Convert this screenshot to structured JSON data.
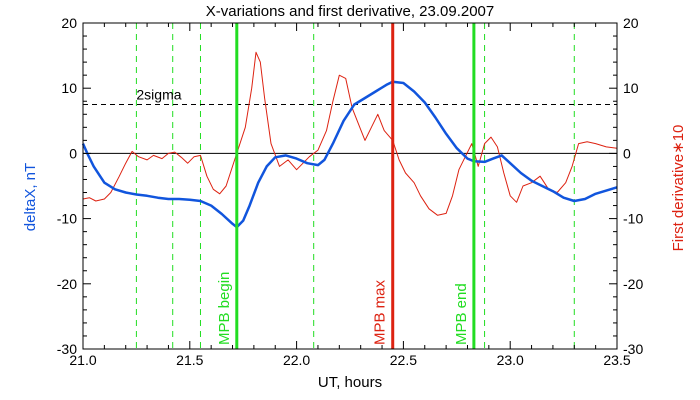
{
  "chart_data": {
    "type": "line",
    "title": "X-variations and first derivative, 23.09.2007",
    "xlabel": "UT, hours",
    "ylabel_left": "deltaX, nT",
    "ylabel_right": "First derivative∗10",
    "xlim": [
      21.0,
      23.5
    ],
    "ylim": [
      -30,
      20
    ],
    "x_ticks": [
      "21.0",
      "21.5",
      "22.0",
      "22.5",
      "23.0",
      "23.5"
    ],
    "y_ticks": [
      "-30",
      "-20",
      "-10",
      "0",
      "10",
      "20"
    ],
    "threshold": {
      "label": "2sigma",
      "value": 7.5
    },
    "zero_line": 0,
    "dashed_verticals": [
      21.25,
      21.42,
      21.55,
      22.08,
      22.88,
      23.3
    ],
    "markers": [
      {
        "label": "MPB begin",
        "x": 21.72,
        "color": "#22dd22"
      },
      {
        "label": "MPB max",
        "x": 22.45,
        "color": "#dd2211"
      },
      {
        "label": "MPB end",
        "x": 22.83,
        "color": "#22dd22"
      }
    ],
    "series": [
      {
        "name": "deltaX",
        "color": "#1155dd",
        "points": [
          [
            21.0,
            1.5
          ],
          [
            21.02,
            0.0
          ],
          [
            21.05,
            -2.0
          ],
          [
            21.08,
            -3.5
          ],
          [
            21.1,
            -4.5
          ],
          [
            21.15,
            -5.5
          ],
          [
            21.2,
            -6.0
          ],
          [
            21.25,
            -6.3
          ],
          [
            21.3,
            -6.5
          ],
          [
            21.35,
            -6.8
          ],
          [
            21.4,
            -7.0
          ],
          [
            21.45,
            -7.0
          ],
          [
            21.5,
            -7.1
          ],
          [
            21.55,
            -7.3
          ],
          [
            21.6,
            -8.0
          ],
          [
            21.65,
            -9.3
          ],
          [
            21.7,
            -10.8
          ],
          [
            21.72,
            -11.3
          ],
          [
            21.75,
            -10.3
          ],
          [
            21.78,
            -8.0
          ],
          [
            21.82,
            -4.5
          ],
          [
            21.86,
            -2.0
          ],
          [
            21.9,
            -0.6
          ],
          [
            21.95,
            -0.3
          ],
          [
            22.0,
            -0.8
          ],
          [
            22.05,
            -1.5
          ],
          [
            22.1,
            -1.8
          ],
          [
            22.13,
            -1.0
          ],
          [
            22.17,
            1.5
          ],
          [
            22.22,
            5.0
          ],
          [
            22.27,
            7.5
          ],
          [
            22.32,
            8.5
          ],
          [
            22.37,
            9.5
          ],
          [
            22.42,
            10.5
          ],
          [
            22.45,
            11.0
          ],
          [
            22.5,
            10.8
          ],
          [
            22.55,
            9.5
          ],
          [
            22.6,
            7.8
          ],
          [
            22.65,
            5.5
          ],
          [
            22.7,
            3.0
          ],
          [
            22.75,
            0.8
          ],
          [
            22.8,
            -0.8
          ],
          [
            22.83,
            -1.2
          ],
          [
            22.88,
            -1.3
          ],
          [
            22.92,
            -0.8
          ],
          [
            22.96,
            -0.3
          ],
          [
            23.0,
            -1.5
          ],
          [
            23.05,
            -3.0
          ],
          [
            23.1,
            -4.2
          ],
          [
            23.15,
            -5.0
          ],
          [
            23.2,
            -5.8
          ],
          [
            23.25,
            -6.8
          ],
          [
            23.3,
            -7.3
          ],
          [
            23.35,
            -7.0
          ],
          [
            23.4,
            -6.2
          ],
          [
            23.45,
            -5.7
          ],
          [
            23.5,
            -5.2
          ]
        ]
      },
      {
        "name": "First derivative∗10",
        "color": "#dd2211",
        "points": [
          [
            21.0,
            -7.0
          ],
          [
            21.03,
            -6.8
          ],
          [
            21.06,
            -7.3
          ],
          [
            21.1,
            -7.0
          ],
          [
            21.13,
            -6.0
          ],
          [
            21.17,
            -3.5
          ],
          [
            21.2,
            -1.5
          ],
          [
            21.23,
            0.3
          ],
          [
            21.26,
            -0.5
          ],
          [
            21.3,
            -1.0
          ],
          [
            21.33,
            -0.3
          ],
          [
            21.37,
            -0.8
          ],
          [
            21.4,
            0.0
          ],
          [
            21.43,
            0.2
          ],
          [
            21.46,
            -0.6
          ],
          [
            21.49,
            -1.5
          ],
          [
            21.52,
            -0.5
          ],
          [
            21.55,
            -0.3
          ],
          [
            21.58,
            -3.5
          ],
          [
            21.61,
            -5.5
          ],
          [
            21.64,
            -6.2
          ],
          [
            21.67,
            -5.0
          ],
          [
            21.7,
            -2.0
          ],
          [
            21.73,
            1.0
          ],
          [
            21.76,
            4.0
          ],
          [
            21.79,
            10.0
          ],
          [
            21.81,
            15.5
          ],
          [
            21.83,
            14.0
          ],
          [
            21.85,
            8.5
          ],
          [
            21.88,
            1.5
          ],
          [
            21.92,
            -2.0
          ],
          [
            21.96,
            -1.0
          ],
          [
            22.0,
            -2.5
          ],
          [
            22.03,
            -1.5
          ],
          [
            22.06,
            -0.5
          ],
          [
            22.1,
            0.5
          ],
          [
            22.14,
            3.5
          ],
          [
            22.17,
            8.0
          ],
          [
            22.2,
            12.0
          ],
          [
            22.23,
            11.5
          ],
          [
            22.26,
            7.0
          ],
          [
            22.29,
            4.5
          ],
          [
            22.32,
            2.0
          ],
          [
            22.35,
            4.0
          ],
          [
            22.38,
            6.0
          ],
          [
            22.41,
            3.5
          ],
          [
            22.45,
            2.0
          ],
          [
            22.48,
            -1.0
          ],
          [
            22.51,
            -3.0
          ],
          [
            22.55,
            -4.5
          ],
          [
            22.58,
            -6.5
          ],
          [
            22.62,
            -8.5
          ],
          [
            22.66,
            -9.5
          ],
          [
            22.7,
            -9.2
          ],
          [
            22.73,
            -6.5
          ],
          [
            22.76,
            -2.5
          ],
          [
            22.79,
            -0.5
          ],
          [
            22.82,
            1.5
          ],
          [
            22.85,
            -2.0
          ],
          [
            22.88,
            1.5
          ],
          [
            22.91,
            2.5
          ],
          [
            22.94,
            1.0
          ],
          [
            22.97,
            -3.0
          ],
          [
            23.0,
            -6.5
          ],
          [
            23.03,
            -7.5
          ],
          [
            23.06,
            -5.0
          ],
          [
            23.1,
            -4.5
          ],
          [
            23.14,
            -3.5
          ],
          [
            23.18,
            -5.5
          ],
          [
            23.22,
            -6.0
          ],
          [
            23.26,
            -4.5
          ],
          [
            23.29,
            -2.0
          ],
          [
            23.32,
            1.5
          ],
          [
            23.36,
            1.8
          ],
          [
            23.4,
            1.5
          ],
          [
            23.45,
            1.0
          ],
          [
            23.5,
            0.8
          ]
        ]
      }
    ],
    "grid": false
  }
}
